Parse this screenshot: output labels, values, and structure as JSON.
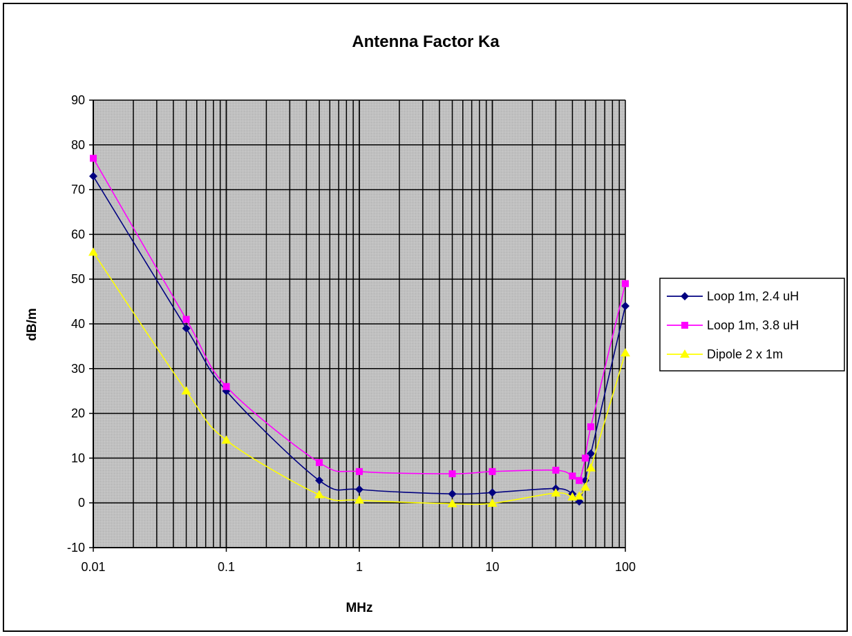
{
  "chart_data": {
    "type": "line",
    "title": "Antenna Factor Ka",
    "xlabel": "MHz",
    "ylabel": "dB/m",
    "x_scale": "log",
    "xlim": [
      0.01,
      100
    ],
    "ylim": [
      -10,
      90
    ],
    "x_ticks": [
      "0.01",
      "0.1",
      "1",
      "10",
      "100"
    ],
    "y_ticks": [
      "-10",
      "0",
      "10",
      "20",
      "30",
      "40",
      "50",
      "60",
      "70",
      "80",
      "90"
    ],
    "grid": true,
    "legend_position": "right",
    "plot_background": "#c0c0c0",
    "series": [
      {
        "name": "Loop 1m, 2.4 uH",
        "color": "#000080",
        "marker": "diamond",
        "points": [
          [
            0.01,
            73
          ],
          [
            0.05,
            39
          ],
          [
            0.1,
            25
          ],
          [
            0.5,
            5
          ],
          [
            1,
            3
          ],
          [
            5,
            2
          ],
          [
            10,
            2.3
          ],
          [
            30,
            3.2
          ],
          [
            40,
            2
          ],
          [
            45,
            0.3
          ],
          [
            50,
            5
          ],
          [
            55,
            11
          ],
          [
            100,
            44
          ]
        ]
      },
      {
        "name": "Loop 1m, 3.8 uH",
        "color": "#ff00ff",
        "marker": "square",
        "points": [
          [
            0.01,
            77
          ],
          [
            0.05,
            41
          ],
          [
            0.1,
            26
          ],
          [
            0.5,
            9
          ],
          [
            1,
            7
          ],
          [
            5,
            6.5
          ],
          [
            10,
            7
          ],
          [
            30,
            7.3
          ],
          [
            40,
            6
          ],
          [
            45,
            5
          ],
          [
            50,
            10
          ],
          [
            55,
            17
          ],
          [
            100,
            49
          ]
        ]
      },
      {
        "name": "Dipole 2 x 1m",
        "color": "#ffff00",
        "marker": "triangle",
        "points": [
          [
            0.01,
            56
          ],
          [
            0.05,
            25
          ],
          [
            0.1,
            14
          ],
          [
            0.5,
            1.8
          ],
          [
            1,
            0.6
          ],
          [
            5,
            -0.2
          ],
          [
            10,
            -0.1
          ],
          [
            30,
            2.2
          ],
          [
            40,
            1.3
          ],
          [
            45,
            1.5
          ],
          [
            50,
            3.5
          ],
          [
            55,
            7.8
          ],
          [
            100,
            33.5
          ]
        ]
      }
    ]
  }
}
